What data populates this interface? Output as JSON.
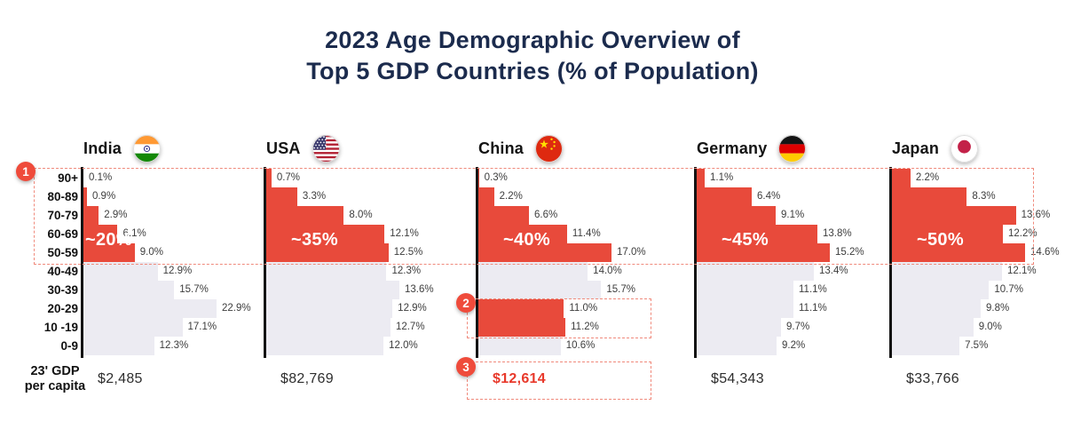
{
  "title": {
    "lines": [
      "2023 Age Demographic Overview of",
      "Top 5 GDP Countries (% of Population)"
    ]
  },
  "left_axis": {
    "age_groups": [
      "90+",
      "80-89",
      "70-79",
      "60-69",
      "50-59",
      "40-49",
      "30-39",
      "20-29",
      "10 -19",
      "0-9"
    ],
    "gdp_label_lines": [
      "23' GDP",
      "per capita"
    ]
  },
  "annotations": {
    "badges": [
      "1",
      "2",
      "3"
    ]
  },
  "colors": {
    "accent_red": "#e84a3b",
    "bar_gray": "#ecebf2",
    "title_navy": "#1b2b4d",
    "dashed_red": "#f08a7c",
    "gdp_highlight_red": "#e8392b"
  },
  "chart_data": {
    "type": "bar",
    "orientation": "horizontal",
    "title": "2023 Age Demographic Overview of Top 5 GDP Countries (% of Population)",
    "unit": "% of population",
    "categories": [
      "90+",
      "80-89",
      "70-79",
      "60-69",
      "50-59",
      "40-49",
      "30-39",
      "20-29",
      "10 -19",
      "0-9"
    ],
    "series": [
      {
        "name": "India",
        "flag": "india-flag-icon",
        "values": [
          0.1,
          0.9,
          2.9,
          6.1,
          9.0,
          12.9,
          15.7,
          22.9,
          17.1,
          12.3
        ],
        "highlighted_rows": [
          0,
          1,
          2,
          3,
          4
        ],
        "approx_50plus_label": "~20%",
        "gdp_per_capita": "$2,485",
        "gdp_highlighted": false
      },
      {
        "name": "USA",
        "flag": "usa-flag-icon",
        "values": [
          0.7,
          3.3,
          8.0,
          12.1,
          12.5,
          12.3,
          13.6,
          12.9,
          12.7,
          12.0
        ],
        "highlighted_rows": [
          0,
          1,
          2,
          3,
          4
        ],
        "approx_50plus_label": "~35%",
        "gdp_per_capita": "$82,769",
        "gdp_highlighted": false
      },
      {
        "name": "China",
        "flag": "china-flag-icon",
        "values": [
          0.3,
          2.2,
          6.6,
          11.4,
          17.0,
          14.0,
          15.7,
          11.0,
          11.2,
          10.6
        ],
        "highlighted_rows": [
          0,
          1,
          2,
          3,
          4,
          7,
          8
        ],
        "approx_50plus_label": "~40%",
        "gdp_per_capita": "$12,614",
        "gdp_highlighted": true
      },
      {
        "name": "Germany",
        "flag": "germany-flag-icon",
        "values": [
          1.1,
          6.4,
          9.1,
          13.8,
          15.2,
          13.4,
          11.1,
          11.1,
          9.7,
          9.2
        ],
        "highlighted_rows": [
          0,
          1,
          2,
          3,
          4
        ],
        "approx_50plus_label": "~45%",
        "gdp_per_capita": "$54,343",
        "gdp_highlighted": false
      },
      {
        "name": "Japan",
        "flag": "japan-flag-icon",
        "values": [
          2.2,
          8.3,
          13.6,
          12.2,
          14.6,
          12.1,
          10.7,
          9.8,
          9.0,
          7.5
        ],
        "highlighted_rows": [
          0,
          1,
          2,
          3,
          4
        ],
        "approx_50plus_label": "~50%",
        "gdp_per_capita": "$33,766",
        "gdp_highlighted": false
      }
    ]
  }
}
